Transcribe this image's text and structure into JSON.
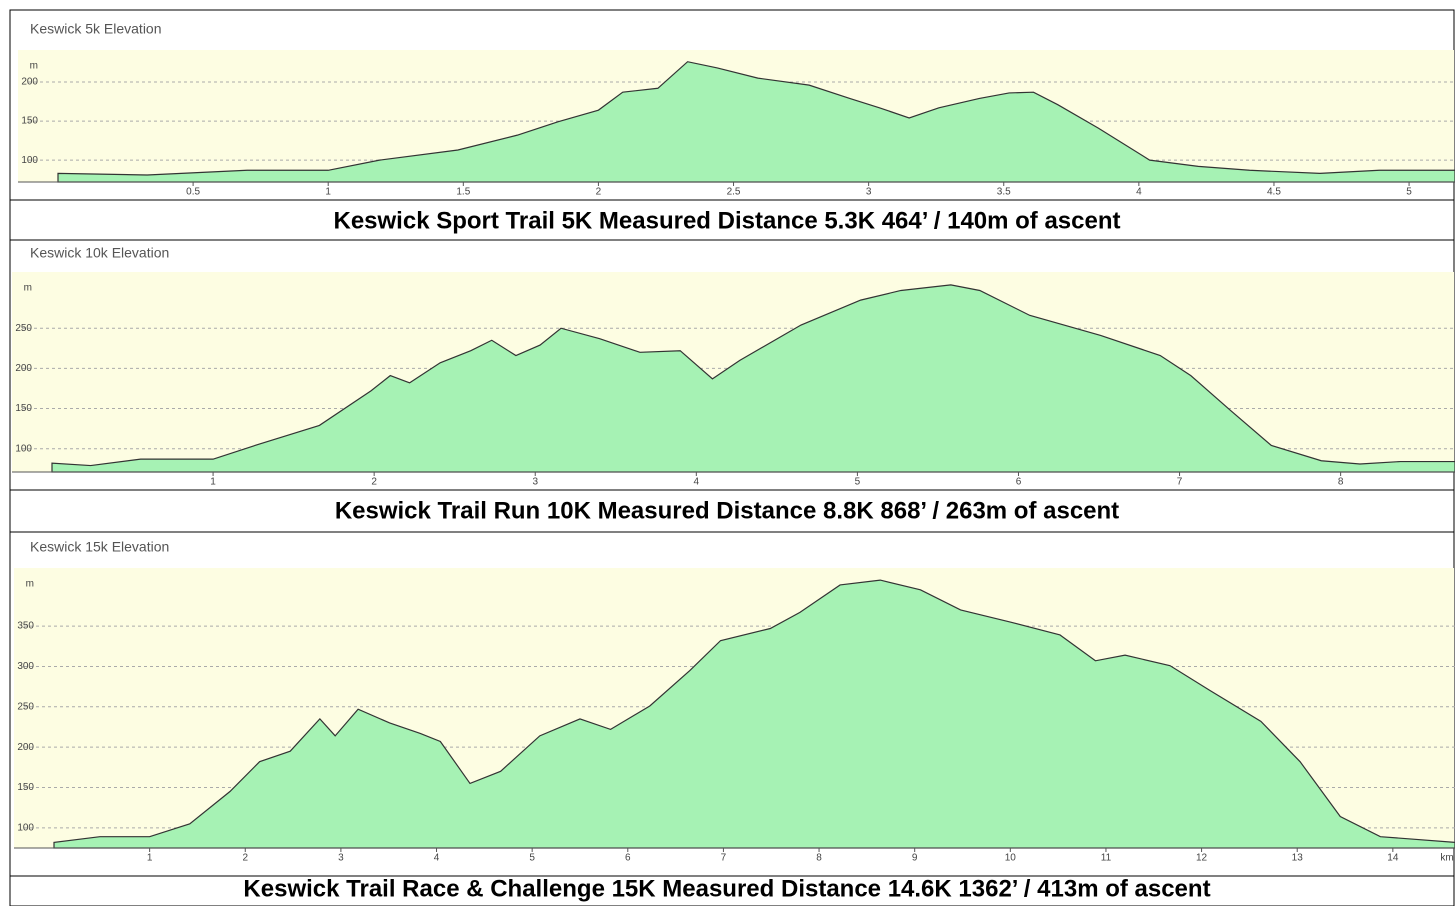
{
  "chart_data": [
    {
      "type": "area",
      "title": "Keswick 5k Elevation",
      "y_label": "m",
      "caption": "Keswick Sport Trail 5K   Measured Distance 5.3K     464’ / 140m of ascent",
      "color": "#a6f2b4",
      "line_color": "#333333",
      "grid": true,
      "x": [
        0,
        0.33,
        0.7,
        1.0,
        1.19,
        1.48,
        1.7,
        1.85,
        2.0,
        2.09,
        2.22,
        2.33,
        2.44,
        2.59,
        2.78,
        2.93,
        3.04,
        3.15,
        3.26,
        3.41,
        3.52,
        3.61,
        3.7,
        3.85,
        4.04,
        4.22,
        4.41,
        4.67,
        4.89,
        5.17
      ],
      "values": [
        83,
        81,
        87,
        87,
        100,
        113,
        132,
        149,
        164,
        187,
        192,
        226,
        218,
        205,
        196,
        179,
        167,
        154,
        167,
        179,
        186,
        187,
        171,
        141,
        100,
        92,
        87,
        83,
        87,
        87
      ],
      "xlim": [
        0,
        5.17
      ],
      "xticks": [
        0.5,
        1,
        1.5,
        2,
        2.5,
        3,
        3.5,
        4,
        4.5,
        5
      ],
      "ylim": [
        72,
        241
      ],
      "yticks": [
        100,
        150,
        200
      ]
    },
    {
      "type": "area",
      "title": "Keswick 10k Elevation",
      "y_label": "m",
      "caption": "Keswick Trail Run 10K    Measured Distance 8.8K     868’ / 263m of ascent",
      "color": "#a6f2b4",
      "line_color": "#333333",
      "grid": true,
      "x": [
        0,
        0.24,
        0.55,
        1.0,
        1.29,
        1.66,
        1.98,
        2.1,
        2.22,
        2.41,
        2.6,
        2.73,
        2.88,
        3.03,
        3.16,
        3.4,
        3.65,
        3.9,
        4.1,
        4.27,
        4.65,
        5.02,
        5.27,
        5.58,
        5.76,
        6.07,
        6.51,
        6.88,
        7.07,
        7.32,
        7.57,
        7.88,
        8.12,
        8.37,
        8.71
      ],
      "values": [
        82,
        79,
        87,
        87,
        106,
        129,
        172,
        191,
        182,
        207,
        222,
        235,
        216,
        229,
        250,
        237,
        220,
        222,
        187,
        210,
        254,
        285,
        297,
        304,
        297,
        266,
        241,
        216,
        191,
        147,
        104,
        85,
        81,
        84,
        84
      ],
      "xlim": [
        0,
        8.71
      ],
      "xticks": [
        1,
        2,
        3,
        4,
        5,
        6,
        7,
        8
      ],
      "ylim": [
        71,
        320
      ],
      "yticks": [
        100,
        150,
        200,
        250
      ]
    },
    {
      "type": "area",
      "title": "Keswick 15k Elevation",
      "y_label": "m",
      "x_label": "km",
      "caption": "Keswick Trail Race & Challenge 15K Measured Distance 14.6K     1362’ / 413m of ascent",
      "color": "#a6f2b4",
      "line_color": "#333333",
      "grid": true,
      "x": [
        0,
        0.48,
        1,
        1.42,
        1.84,
        2.15,
        2.47,
        2.78,
        2.94,
        3.18,
        3.51,
        3.83,
        4.04,
        4.35,
        4.67,
        5.08,
        5.5,
        5.82,
        6.23,
        6.65,
        6.97,
        7.49,
        7.8,
        8.22,
        8.64,
        9.06,
        9.48,
        10.0,
        10.52,
        10.89,
        11.2,
        11.67,
        12.09,
        12.62,
        13.03,
        13.45,
        13.87,
        14.65
      ],
      "values": [
        82,
        89,
        89,
        105,
        145,
        182,
        195,
        235,
        214,
        247,
        230,
        217,
        207,
        155,
        170,
        214,
        235,
        222,
        251,
        295,
        332,
        347,
        367,
        401,
        407,
        395,
        370,
        355,
        339,
        307,
        314,
        301,
        270,
        232,
        182,
        114,
        89,
        82
      ],
      "xlim": [
        0,
        14.65
      ],
      "xticks": [
        1,
        2,
        3,
        4,
        5,
        6,
        7,
        8,
        9,
        10,
        11,
        12,
        13,
        14
      ],
      "ylim": [
        75,
        422
      ],
      "yticks": [
        100,
        150,
        200,
        250,
        300,
        350
      ]
    }
  ]
}
